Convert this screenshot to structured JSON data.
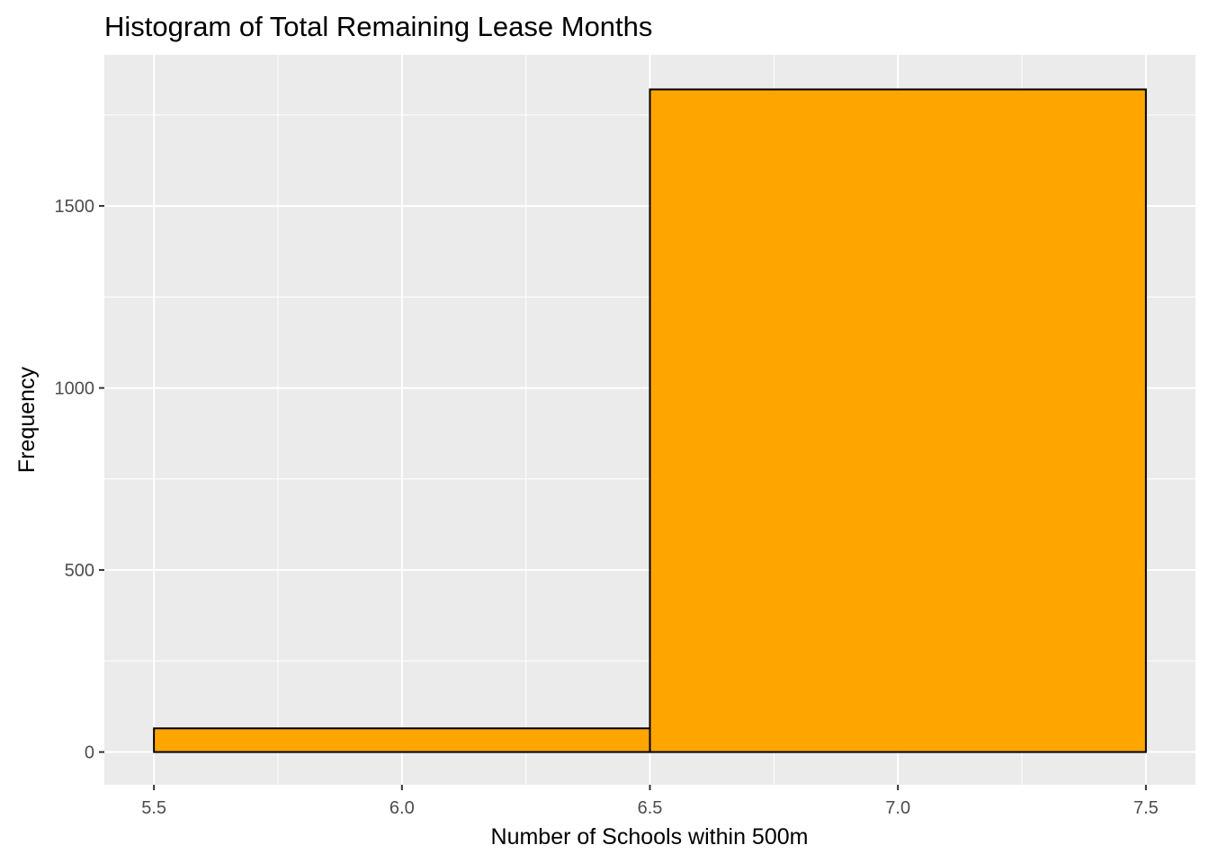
{
  "chart_data": {
    "type": "bar",
    "title": "Histogram of Total Remaining Lease Months",
    "xlabel": "Number of Schools within 500m",
    "ylabel": "Frequency",
    "xlim": [
      5.4,
      7.6
    ],
    "ylim": [
      -90,
      1915
    ],
    "x_ticks": [
      "5.5",
      "6.0",
      "6.5",
      "7.0",
      "7.5"
    ],
    "y_ticks": [
      "0",
      "500",
      "1000",
      "1500"
    ],
    "bins": [
      {
        "x0": 5.5,
        "x1": 6.5,
        "count": 65
      },
      {
        "x0": 6.5,
        "x1": 7.5,
        "count": 1820
      }
    ],
    "fill": "#FFA500",
    "outline": "#000000",
    "panel_background": "#EBEBEB",
    "grid": true,
    "legend": "none"
  }
}
